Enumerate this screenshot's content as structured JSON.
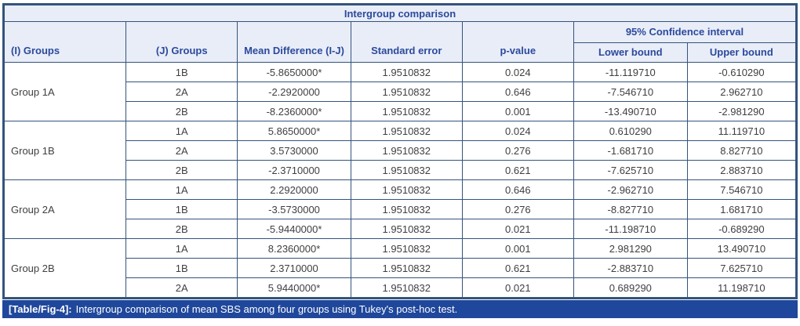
{
  "title": "Intergroup comparison",
  "header": {
    "i_groups": "(I) Groups",
    "j_groups": "(J) Groups",
    "mean_diff": "Mean Difference (I-J)",
    "std_error": "Standard error",
    "p_value": "p-value",
    "ci": "95% Confidence interval",
    "lower_bound": "Lower bound",
    "upper_bound": "Upper bound"
  },
  "groups": [
    {
      "name": "Group 1A",
      "rows": [
        {
          "j": "1B",
          "mean_diff": "-5.8650000*",
          "std_error": "1.9510832",
          "p_value": "0.024",
          "lower": "-11.119710",
          "upper": "-0.610290"
        },
        {
          "j": "2A",
          "mean_diff": "-2.2920000",
          "std_error": "1.9510832",
          "p_value": "0.646",
          "lower": "-7.546710",
          "upper": "2.962710"
        },
        {
          "j": "2B",
          "mean_diff": "-8.2360000*",
          "std_error": "1.9510832",
          "p_value": "0.001",
          "lower": "-13.490710",
          "upper": "-2.981290"
        }
      ]
    },
    {
      "name": "Group 1B",
      "rows": [
        {
          "j": "1A",
          "mean_diff": "5.8650000*",
          "std_error": "1.9510832",
          "p_value": "0.024",
          "lower": "0.610290",
          "upper": "11.119710"
        },
        {
          "j": "2A",
          "mean_diff": "3.5730000",
          "std_error": "1.9510832",
          "p_value": "0.276",
          "lower": "-1.681710",
          "upper": "8.827710"
        },
        {
          "j": "2B",
          "mean_diff": "-2.3710000",
          "std_error": "1.9510832",
          "p_value": "0.621",
          "lower": "-7.625710",
          "upper": "2.883710"
        }
      ]
    },
    {
      "name": "Group 2A",
      "rows": [
        {
          "j": "1A",
          "mean_diff": "2.2920000",
          "std_error": "1.9510832",
          "p_value": "0.646",
          "lower": "-2.962710",
          "upper": "7.546710"
        },
        {
          "j": "1B",
          "mean_diff": "-3.5730000",
          "std_error": "1.9510832",
          "p_value": "0.276",
          "lower": "-8.827710",
          "upper": "1.681710"
        },
        {
          "j": "2B",
          "mean_diff": "-5.9440000*",
          "std_error": "1.9510832",
          "p_value": "0.021",
          "lower": "-11.198710",
          "upper": "-0.689290"
        }
      ]
    },
    {
      "name": "Group 2B",
      "rows": [
        {
          "j": "1A",
          "mean_diff": "8.2360000*",
          "std_error": "1.9510832",
          "p_value": "0.001",
          "lower": "2.981290",
          "upper": "13.490710"
        },
        {
          "j": "1B",
          "mean_diff": "2.3710000",
          "std_error": "1.9510832",
          "p_value": "0.621",
          "lower": "-2.883710",
          "upper": "7.625710"
        },
        {
          "j": "2A",
          "mean_diff": "5.9440000*",
          "std_error": "1.9510832",
          "p_value": "0.021",
          "lower": "0.689290",
          "upper": "11.198710"
        }
      ]
    }
  ],
  "caption": {
    "label": "[Table/Fig-4]:",
    "text": "Intergroup comparison of mean SBS among four groups using Tukey's post-hoc test."
  },
  "colors": {
    "border": "#33547C",
    "header_bg": "#E9EDF8",
    "header_text": "#2B4A9C",
    "body_text": "#3F3F3F",
    "caption_bg": "#1F479B",
    "caption_text": "#FFFFFF"
  }
}
